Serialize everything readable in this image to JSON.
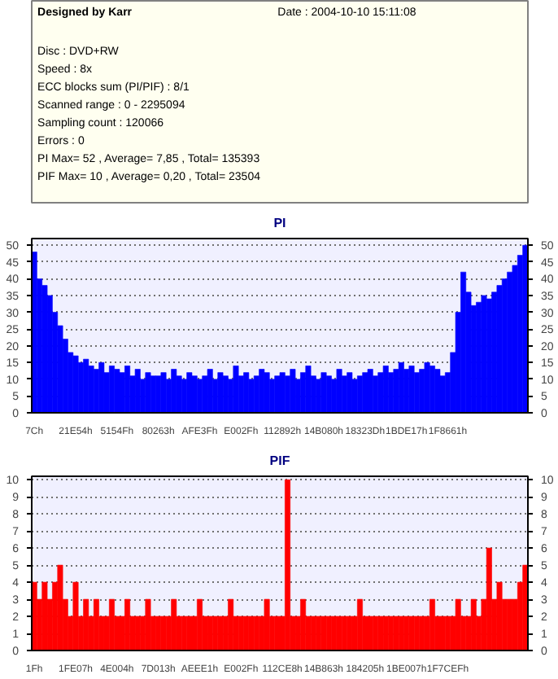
{
  "chart_data": [
    {
      "type": "other",
      "title": "Designed by Karr",
      "annotations": [
        "Date : 2004-10-10 15:11:08",
        "Disc : DVD+RW",
        "Speed : 8x",
        "ECC blocks sum (PI/PIF) : 8/1",
        "Scanned range : 0 - 2295094",
        "Sampling count : 120066",
        "Errors : 0",
        "PI Max= 52 , Average= 7,85 , Total= 135393",
        "PIF Max= 10 , Average= 0,20 , Total= 23504"
      ]
    },
    {
      "type": "bar",
      "title": "PI",
      "color": "#0000ff",
      "grid": "y",
      "ylim": [
        0,
        52
      ],
      "yticks": [
        0,
        5,
        10,
        15,
        20,
        25,
        30,
        35,
        40,
        45,
        50
      ],
      "y2lim": [
        0,
        52
      ],
      "y2ticks": [
        0,
        5,
        10,
        15,
        20,
        25,
        30,
        35,
        40,
        45,
        50
      ],
      "categories": [
        "7Ch",
        null,
        null,
        null,
        null,
        null,
        null,
        null,
        "21E54h",
        null,
        null,
        null,
        null,
        null,
        null,
        null,
        "5154Fh",
        null,
        null,
        null,
        null,
        null,
        null,
        null,
        "80263h",
        null,
        null,
        null,
        null,
        null,
        null,
        null,
        "AFE3Fh",
        null,
        null,
        null,
        null,
        null,
        null,
        null,
        "E002Fh",
        null,
        null,
        null,
        null,
        null,
        null,
        null,
        "112892h",
        null,
        null,
        null,
        null,
        null,
        null,
        null,
        "14B080h",
        null,
        null,
        null,
        null,
        null,
        null,
        null,
        "18323Dh",
        null,
        null,
        null,
        null,
        null,
        null,
        null,
        "1BDE17h",
        null,
        null,
        null,
        null,
        null,
        null,
        null,
        "1F8661h",
        null,
        null,
        null,
        null,
        null,
        null,
        null,
        null,
        null,
        null,
        null,
        null,
        null,
        null,
        null
      ],
      "values": [
        48,
        40,
        38,
        35,
        30,
        26,
        22,
        18,
        17,
        15,
        16,
        14,
        13,
        15,
        12,
        14,
        13,
        12,
        14,
        11,
        13,
        10,
        12,
        11,
        11,
        12,
        10,
        13,
        11,
        10,
        12,
        11,
        10,
        11,
        13,
        10,
        12,
        11,
        10,
        14,
        11,
        12,
        10,
        11,
        13,
        12,
        10,
        11,
        12,
        11,
        13,
        10,
        12,
        14,
        11,
        10,
        12,
        11,
        10,
        13,
        11,
        12,
        10,
        11,
        12,
        13,
        11,
        12,
        14,
        12,
        13,
        15,
        13,
        14,
        12,
        13,
        15,
        14,
        13,
        11,
        12,
        18,
        30,
        42,
        36,
        32,
        33,
        35,
        34,
        36,
        38,
        40,
        42,
        44,
        47,
        50
      ]
    },
    {
      "type": "bar",
      "title": "PIF",
      "color": "#ff0000",
      "grid": "y",
      "ylim": [
        0,
        10.2
      ],
      "yticks": [
        0,
        1,
        2,
        3,
        4,
        5,
        6,
        7,
        8,
        9,
        10
      ],
      "y2lim": [
        0,
        10.2
      ],
      "y2ticks": [
        0,
        1,
        2,
        3,
        4,
        5,
        6,
        7,
        8,
        9,
        10
      ],
      "categories": [
        "1Fh",
        null,
        null,
        null,
        null,
        null,
        null,
        null,
        "1FE07h",
        null,
        null,
        null,
        null,
        null,
        null,
        null,
        "4E004h",
        null,
        null,
        null,
        null,
        null,
        null,
        null,
        "7D013h",
        null,
        null,
        null,
        null,
        null,
        null,
        null,
        "AEEE1h",
        null,
        null,
        null,
        null,
        null,
        null,
        null,
        "E002Fh",
        null,
        null,
        null,
        null,
        null,
        null,
        null,
        "112CE8h",
        null,
        null,
        null,
        null,
        null,
        null,
        null,
        "14B863h",
        null,
        null,
        null,
        null,
        null,
        null,
        null,
        "184205h",
        null,
        null,
        null,
        null,
        null,
        null,
        null,
        "1BE007h",
        null,
        null,
        null,
        null,
        null,
        null,
        null,
        "1F7CEFh",
        null,
        null,
        null,
        null,
        null,
        null,
        null,
        null,
        null,
        null,
        null,
        null,
        null,
        null,
        null
      ],
      "values": [
        4,
        3,
        4,
        3,
        4,
        5,
        3,
        2,
        4,
        2,
        3,
        2,
        3,
        2,
        2,
        3,
        2,
        2,
        3,
        2,
        2,
        2,
        3,
        2,
        2,
        2,
        2,
        3,
        2,
        2,
        2,
        2,
        3,
        2,
        2,
        2,
        2,
        2,
        3,
        2,
        2,
        2,
        2,
        2,
        2,
        3,
        2,
        2,
        2,
        10,
        2,
        2,
        3,
        2,
        2,
        2,
        2,
        2,
        2,
        2,
        2,
        2,
        2,
        3,
        2,
        2,
        2,
        2,
        2,
        2,
        2,
        2,
        2,
        2,
        2,
        2,
        2,
        3,
        2,
        2,
        2,
        2,
        3,
        2,
        2,
        3,
        2,
        3,
        6,
        3,
        4,
        3,
        3,
        3,
        4,
        5
      ]
    }
  ]
}
